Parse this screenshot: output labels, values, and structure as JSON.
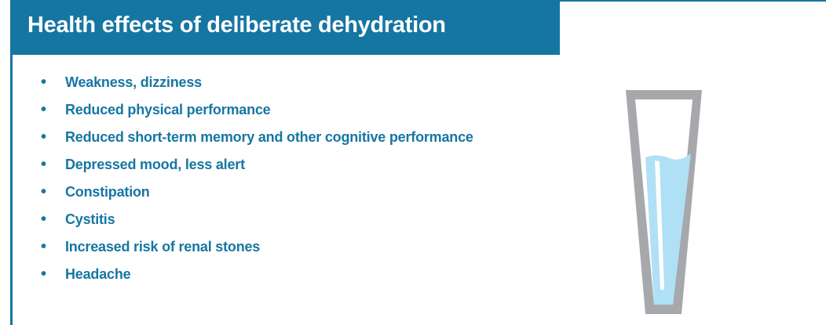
{
  "header": {
    "title": "Health effects of deliberate dehydration"
  },
  "list": {
    "items": [
      "Weakness, dizziness",
      "Reduced physical performance",
      "Reduced short-term memory and other cognitive performance",
      "Depressed mood, less alert",
      "Constipation",
      "Cystitis",
      "Increased risk of renal stones",
      "Headache"
    ]
  }
}
